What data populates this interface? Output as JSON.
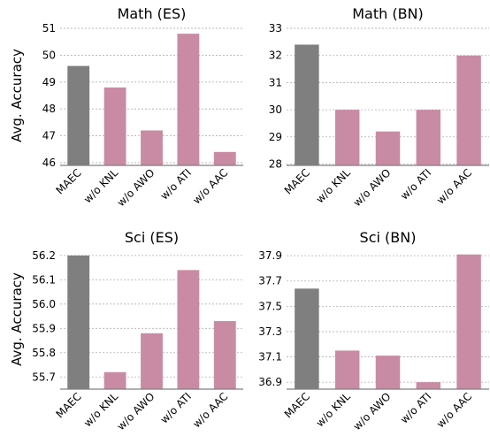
{
  "figure": {
    "ylabel": "Avg. Accuracy"
  },
  "chart_data": [
    {
      "type": "bar",
      "title": "Math (ES)",
      "categories": [
        "MAEC",
        "w/o KNL",
        "w/o AWO",
        "w/o ATI",
        "w/o AAC"
      ],
      "values": [
        49.6,
        48.8,
        47.2,
        50.8,
        46.4
      ],
      "ylabel": "Avg. Accuracy",
      "ylim": [
        45.9,
        51.1
      ],
      "yticks": [
        46,
        47,
        48,
        49,
        50,
        51
      ],
      "grid": true,
      "colors": [
        "#7f7f7f",
        "#c98ba4",
        "#c98ba4",
        "#c98ba4",
        "#c98ba4"
      ]
    },
    {
      "type": "bar",
      "title": "Math (BN)",
      "categories": [
        "MAEC",
        "w/o KNL",
        "w/o AWO",
        "w/o ATI",
        "w/o AAC"
      ],
      "values": [
        32.4,
        30.0,
        29.2,
        30.0,
        32.0
      ],
      "ylabel": "",
      "ylim": [
        27.95,
        33.1
      ],
      "yticks": [
        28,
        29,
        30,
        31,
        32,
        33
      ],
      "grid": true,
      "colors": [
        "#7f7f7f",
        "#c98ba4",
        "#c98ba4",
        "#c98ba4",
        "#c98ba4"
      ]
    },
    {
      "type": "bar",
      "title": "Sci (ES)",
      "categories": [
        "MAEC",
        "w/o KNL",
        "w/o AWO",
        "w/o ATI",
        "w/o AAC"
      ],
      "values": [
        56.2,
        55.72,
        55.88,
        56.14,
        55.93
      ],
      "ylabel": "Avg. Accuracy",
      "ylim": [
        55.65,
        56.225
      ],
      "yticks": [
        55.7,
        55.8,
        55.9,
        56.0,
        56.1,
        56.2
      ],
      "ytick_labels": [
        "55.7",
        "55.8",
        "55.9",
        "56.0",
        "56.1",
        "56.2"
      ],
      "grid": true,
      "colors": [
        "#7f7f7f",
        "#c98ba4",
        "#c98ba4",
        "#c98ba4",
        "#c98ba4"
      ]
    },
    {
      "type": "bar",
      "title": "Sci (BN)",
      "categories": [
        "MAEC",
        "w/o KNL",
        "w/o AWO",
        "w/o ATI",
        "w/o AAC"
      ],
      "values": [
        37.64,
        37.15,
        37.11,
        36.9,
        37.91
      ],
      "ylabel": "",
      "ylim": [
        36.845,
        37.95
      ],
      "yticks": [
        36.9,
        37.1,
        37.3,
        37.5,
        37.7,
        37.9
      ],
      "ytick_labels": [
        "36.9",
        "37.1",
        "37.3",
        "37.5",
        "37.7",
        "37.9"
      ],
      "grid": true,
      "colors": [
        "#7f7f7f",
        "#c98ba4",
        "#c98ba4",
        "#c98ba4",
        "#c98ba4"
      ]
    }
  ]
}
